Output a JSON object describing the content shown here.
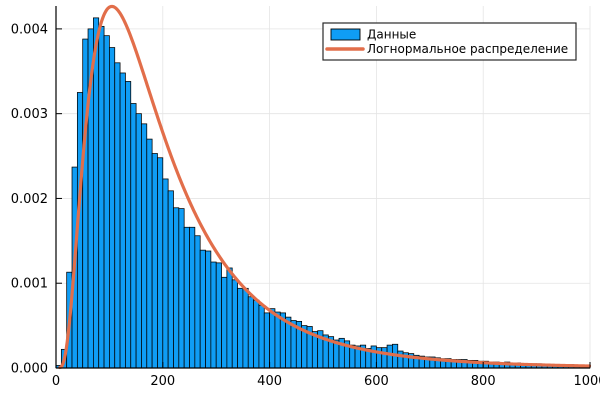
{
  "chart_data": {
    "type": "histogram+line",
    "title": "",
    "xlabel": "",
    "ylabel": "",
    "xlim": [
      0,
      1000
    ],
    "ylim": [
      0,
      0.00427
    ],
    "grid": true,
    "x_ticks": [
      0,
      200,
      400,
      600,
      800,
      1000
    ],
    "x_tick_labels": [
      "0",
      "200",
      "400",
      "600",
      "800",
      "1000"
    ],
    "y_ticks": [
      0,
      0.001,
      0.002,
      0.003,
      0.004
    ],
    "y_tick_labels": [
      "0.000",
      "0.001",
      "0.002",
      "0.003",
      "0.004"
    ],
    "legend": {
      "position": "top-right",
      "entries": [
        {
          "label": "Данные",
          "type": "bar",
          "color": "#0f9df5"
        },
        {
          "label": "Логнормальное распределение",
          "type": "line",
          "color": "#e26e4a"
        }
      ]
    },
    "histogram": {
      "name": "Данные",
      "bin_start": 0,
      "bin_width": 10,
      "fill": "#0f9df5",
      "stroke": "#000000",
      "densities": [
        3e-05,
        0.00022,
        0.00113,
        0.00237,
        0.00325,
        0.00388,
        0.004,
        0.00413,
        0.00403,
        0.00392,
        0.00378,
        0.0036,
        0.00348,
        0.00338,
        0.00312,
        0.003,
        0.00288,
        0.0027,
        0.00253,
        0.00248,
        0.00223,
        0.00209,
        0.00189,
        0.00188,
        0.00166,
        0.00166,
        0.00156,
        0.00139,
        0.00138,
        0.00125,
        0.00124,
        0.00107,
        0.00118,
        0.00104,
        0.00094,
        0.00094,
        0.00084,
        0.0008,
        0.00074,
        0.00065,
        0.0007,
        0.00066,
        0.00065,
        0.0006,
        0.00056,
        0.00055,
        0.0005,
        0.00049,
        0.00043,
        0.00044,
        0.00039,
        0.00037,
        0.00033,
        0.00035,
        0.00032,
        0.00027,
        0.00026,
        0.00027,
        0.00023,
        0.00026,
        0.00024,
        0.00024,
        0.00027,
        0.00028,
        0.0002,
        0.00018,
        0.00017,
        0.00015,
        0.00014,
        0.00013,
        0.00013,
        0.00012,
        0.00011,
        0.00011,
        0.0001,
        0.0001,
        0.0001,
        9e-05,
        9e-05,
        8e-05,
        8e-05,
        7e-05,
        7e-05,
        6e-05,
        7e-05,
        6e-05,
        6e-05,
        5e-05,
        5e-05,
        5e-05,
        5e-05,
        4e-05,
        4e-05,
        4e-05,
        4e-05,
        3e-05,
        4e-05,
        3e-05,
        3e-05,
        3e-05
      ]
    },
    "curve": {
      "name": "Логнормальное распределение",
      "distribution": "lognormal_pdf",
      "mu": 5.14,
      "sigma": 0.7,
      "mode_x": 105,
      "peak_density": 0.00426,
      "color": "#e26e4a",
      "line_width": 3.2
    },
    "colors": {
      "background": "#ffffff",
      "gridline": "#e4e4e4",
      "axis": "#000000",
      "legend_border": "#2a2a2a"
    }
  }
}
